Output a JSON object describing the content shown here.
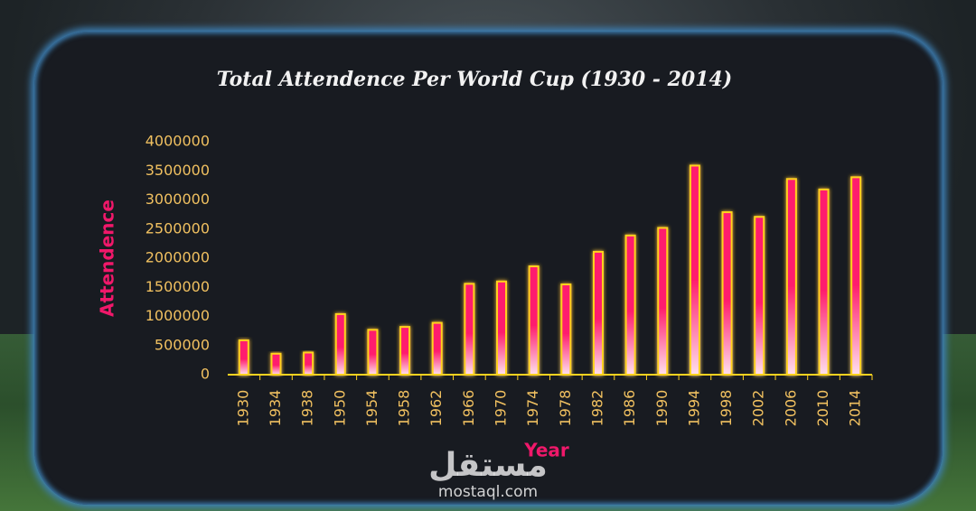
{
  "chart_data": {
    "type": "bar",
    "title": "Total Attendence Per World Cup (1930 - 2014)",
    "x_label": "Year",
    "y_label": "Attendence",
    "categories": [
      "1930",
      "1934",
      "1938",
      "1950",
      "1954",
      "1958",
      "1962",
      "1966",
      "1970",
      "1974",
      "1978",
      "1982",
      "1986",
      "1990",
      "1994",
      "1998",
      "2002",
      "2006",
      "2010",
      "2014"
    ],
    "values": [
      590000,
      360000,
      380000,
      1040000,
      770000,
      820000,
      890000,
      1560000,
      1600000,
      1860000,
      1550000,
      2110000,
      2390000,
      2520000,
      3590000,
      2790000,
      2710000,
      3360000,
      3180000,
      3390000
    ],
    "color": "#ff1f6e",
    "edge_color": "#ffd21f",
    "ylim": [
      0,
      4000000
    ],
    "yticks": [
      0,
      500000,
      1000000,
      1500000,
      2000000,
      2500000,
      3000000,
      3500000,
      4000000
    ]
  },
  "watermark": {
    "logo": "مستقل",
    "url": "mostaql.com"
  }
}
